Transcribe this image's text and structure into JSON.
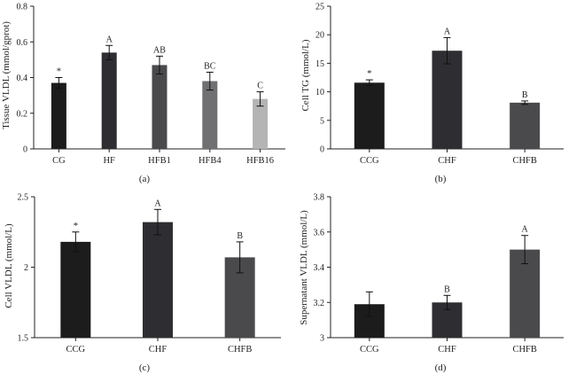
{
  "chart_data": [
    {
      "type": "bar",
      "panel_label": "(a)",
      "ylabel": "Tissue VLDL (mmol/gprot)",
      "xlabel": "",
      "categories": [
        "CG",
        "HF",
        "HFB1",
        "HFB4",
        "HFB16"
      ],
      "values": [
        0.37,
        0.54,
        0.47,
        0.38,
        0.28
      ],
      "errors": [
        0.03,
        0.04,
        0.05,
        0.05,
        0.04
      ],
      "annotations": [
        "*",
        "A",
        "AB",
        "BC",
        "C"
      ],
      "colors": [
        "#1c1c1c",
        "#2e2e32",
        "#4a4a4c",
        "#707072",
        "#b4b4b4"
      ],
      "ylim": [
        0,
        0.8
      ],
      "yticks": [
        0,
        0.2,
        0.4,
        0.6,
        0.8
      ],
      "ytick_labels": [
        "0",
        "0.2",
        "0.4",
        "0.6",
        "0.8"
      ]
    },
    {
      "type": "bar",
      "panel_label": "(b)",
      "ylabel": "Cell TG (mmol/L)",
      "xlabel": "",
      "categories": [
        "CCG",
        "CHF",
        "CHFB"
      ],
      "values": [
        11.6,
        17.2,
        8.1
      ],
      "errors": [
        0.5,
        2.3,
        0.3
      ],
      "annotations": [
        "*",
        "A",
        "B"
      ],
      "colors": [
        "#1c1c1c",
        "#2e2e32",
        "#4a4a4c"
      ],
      "ylim": [
        0,
        25
      ],
      "yticks": [
        0,
        5,
        10,
        15,
        20,
        25
      ],
      "ytick_labels": [
        "0",
        "5",
        "10",
        "15",
        "20",
        "25"
      ]
    },
    {
      "type": "bar",
      "panel_label": "(c)",
      "ylabel": "Cell VLDL (mmol/L)",
      "xlabel": "",
      "categories": [
        "CCG",
        "CHF",
        "CHFB"
      ],
      "values": [
        2.18,
        2.32,
        2.07
      ],
      "errors": [
        0.07,
        0.09,
        0.11
      ],
      "annotations": [
        "*",
        "A",
        "B"
      ],
      "colors": [
        "#1c1c1c",
        "#2e2e32",
        "#4a4a4c"
      ],
      "ylim": [
        1.5,
        2.5
      ],
      "yticks": [
        1.5,
        2,
        2.5
      ],
      "ytick_labels": [
        "1.5",
        "2",
        "2.5"
      ]
    },
    {
      "type": "bar",
      "panel_label": "(d)",
      "ylabel": "Supernatant VLDL (mmol/L)",
      "xlabel": "",
      "categories": [
        "CCG",
        "CHF",
        "CHFB"
      ],
      "values": [
        3.19,
        3.2,
        3.5
      ],
      "errors": [
        0.07,
        0.04,
        0.08
      ],
      "annotations": [
        "",
        "B",
        "A"
      ],
      "colors": [
        "#1c1c1c",
        "#2e2e32",
        "#4a4a4c"
      ],
      "ylim": [
        3,
        3.8
      ],
      "yticks": [
        3,
        3.2,
        3.4,
        3.6,
        3.8
      ],
      "ytick_labels": [
        "3",
        "3.2",
        "3.4",
        "3.6",
        "3.8"
      ]
    }
  ]
}
